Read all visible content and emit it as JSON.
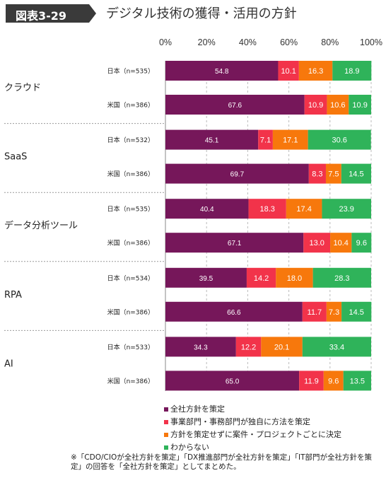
{
  "figure": {
    "badge": "図表3-29",
    "title": "デジタル技術の獲得・活用の方針",
    "note": "※「CDO/CIOが全社方針を策定」「DX推進部門が全社方針を策定」「IT部門が全社方針を策定」の回答を「全社方針を策定」としてまとめた。"
  },
  "chart_data": {
    "type": "bar",
    "orientation": "horizontal",
    "stacked": true,
    "percent_axis": true,
    "x_ticks": [
      "0%",
      "20%",
      "40%",
      "60%",
      "80%",
      "100%"
    ],
    "xlim": [
      0,
      100
    ],
    "grid": "dashed vertical at 20% intervals",
    "legend_position": "bottom",
    "series": [
      {
        "name": "全社方針を策定",
        "color": "#76175a"
      },
      {
        "name": "事業部門・事務部門が独自に方法を策定",
        "color": "#f2334a"
      },
      {
        "name": "方針を策定せずに案件・プロジェクトごとに決定",
        "color": "#f7780c"
      },
      {
        "name": "わからない",
        "color": "#2fb35a"
      }
    ],
    "groups": [
      {
        "label": "クラウド",
        "bars": [
          {
            "label": "日本（n=535）",
            "values": [
              54.8,
              10.1,
              16.3,
              18.9
            ]
          },
          {
            "label": "米国（n=386）",
            "values": [
              67.6,
              10.9,
              10.6,
              10.9
            ]
          }
        ]
      },
      {
        "label": "SaaS",
        "bars": [
          {
            "label": "日本（n=532）",
            "values": [
              45.1,
              7.1,
              17.1,
              30.6
            ]
          },
          {
            "label": "米国（n=386）",
            "values": [
              69.7,
              8.3,
              7.5,
              14.5
            ]
          }
        ]
      },
      {
        "label": "データ分析ツール",
        "bars": [
          {
            "label": "日本（n=535）",
            "values": [
              40.4,
              18.3,
              17.4,
              23.9
            ]
          },
          {
            "label": "米国（n=386）",
            "values": [
              67.1,
              13.0,
              10.4,
              9.6
            ]
          }
        ]
      },
      {
        "label": "RPA",
        "bars": [
          {
            "label": "日本（n=534）",
            "values": [
              39.5,
              14.2,
              18.0,
              28.3
            ]
          },
          {
            "label": "米国（n=386）",
            "values": [
              66.6,
              11.7,
              7.3,
              14.5
            ]
          }
        ]
      },
      {
        "label": "AI",
        "bars": [
          {
            "label": "日本（n=533）",
            "values": [
              34.3,
              12.2,
              20.1,
              33.4
            ]
          },
          {
            "label": "米国（n=386）",
            "values": [
              65.0,
              11.9,
              9.6,
              13.5
            ]
          }
        ]
      }
    ]
  }
}
